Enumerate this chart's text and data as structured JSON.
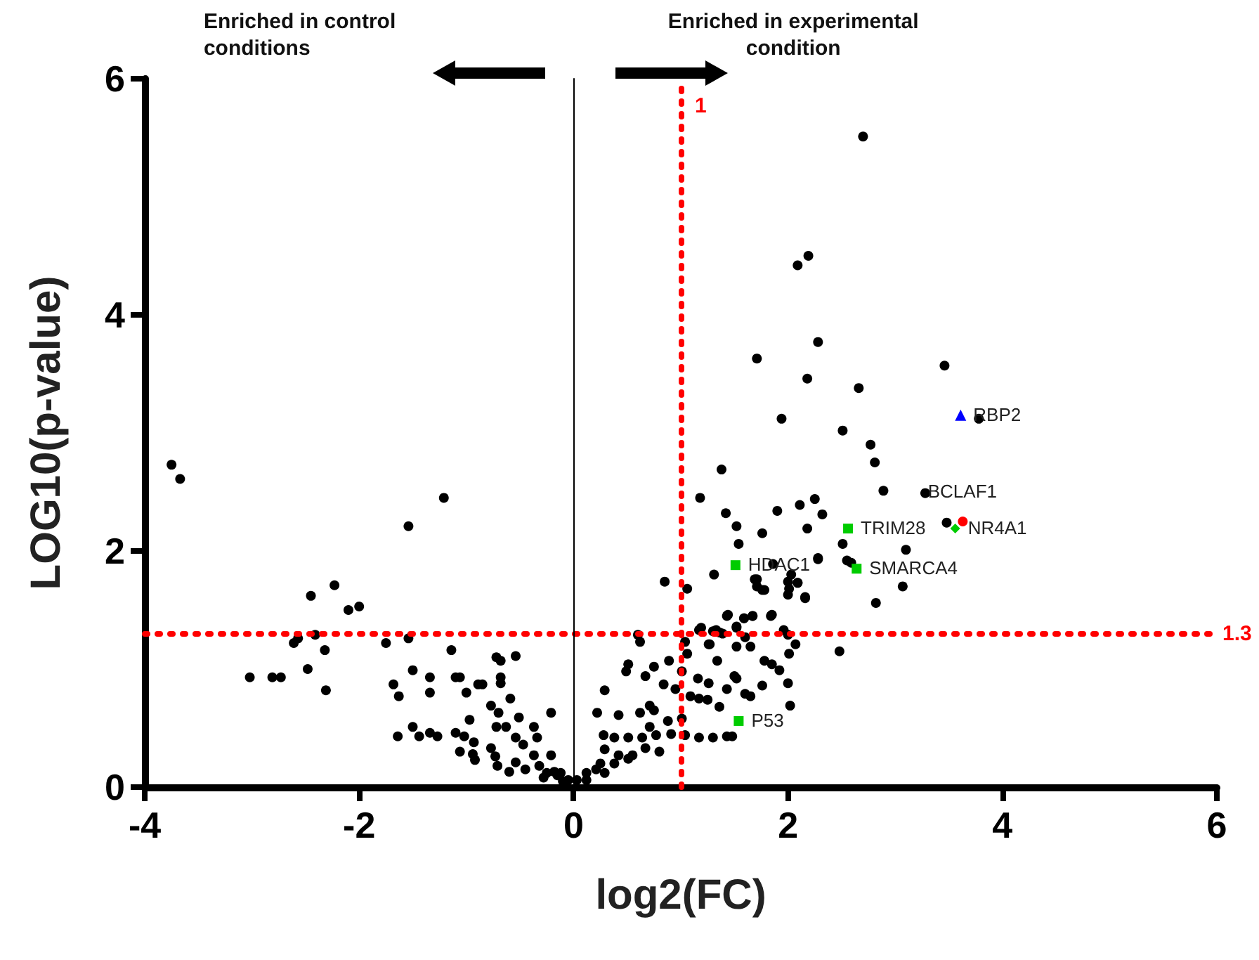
{
  "chart_data": {
    "type": "scatter",
    "xlabel": "log2(FC)",
    "ylabel": "LOG10(p-value)",
    "xlim": [
      -4,
      6
    ],
    "xticks": [
      -4,
      -2,
      0,
      2,
      4,
      6
    ],
    "ylim": [
      0,
      6
    ],
    "yticks": [
      0,
      2,
      4,
      6
    ],
    "grid": false,
    "series": [
      {
        "color": "#000000",
        "marker": "circle",
        "x": [
          -3.75,
          -3.67,
          -1.21,
          -1.54,
          -2.23,
          -2.45,
          -2.1,
          -2.0,
          -2.61,
          -2.57,
          -2.41,
          -2.32,
          -1.75,
          -1.54,
          -3.02,
          -2.81,
          -2.73,
          -2.48,
          -2.31,
          -1.68,
          -1.63,
          -1.5,
          -1.34,
          -1.34,
          -1.14,
          -1.1,
          -1.06,
          -1.0,
          -0.89,
          -0.85,
          -0.72,
          -0.68,
          -0.54,
          -0.68,
          -0.68,
          -0.59,
          -0.77,
          -0.7,
          -0.51,
          -0.97,
          -0.21,
          -1.64,
          -1.5,
          -1.44,
          -1.34,
          -1.27,
          -1.1,
          -1.06,
          -0.94,
          -0.92,
          -1.02,
          -0.93,
          -0.77,
          -0.73,
          -0.71,
          -0.72,
          -0.63,
          -0.54,
          -0.47,
          -0.37,
          -0.34,
          -0.6,
          -0.54,
          -0.45,
          -0.37,
          -0.32,
          -0.21,
          -0.28,
          -0.18,
          -0.12,
          -0.05,
          -0.1,
          -0.15,
          -0.25,
          0.85,
          1.31,
          1.54,
          1.86,
          1.69,
          1.76,
          2.0,
          2.09,
          2.0,
          2.16,
          2.28,
          0.6,
          0.62,
          1.17,
          1.3,
          1.39,
          1.43,
          1.52,
          1.59,
          1.67,
          1.85,
          1.96,
          2.0,
          1.04,
          1.06,
          1.26,
          1.52,
          1.6,
          1.65,
          2.01,
          2.48,
          0.51,
          0.49,
          0.67,
          0.75,
          0.89,
          0.84,
          0.95,
          1.01,
          1.16,
          1.34,
          1.26,
          1.5,
          1.52,
          1.43,
          1.6,
          1.65,
          1.76,
          1.78,
          1.85,
          1.92,
          2.0,
          2.02,
          1.09,
          1.17,
          1.25,
          1.36,
          0.29,
          0.22,
          0.42,
          0.62,
          0.71,
          0.75,
          0.71,
          0.88,
          1.01,
          0.28,
          0.38,
          0.51,
          0.64,
          0.77,
          0.91,
          1.04,
          1.17,
          1.3,
          1.43,
          1.48,
          0.29,
          0.42,
          0.55,
          0.67,
          0.8,
          0.25,
          0.38,
          0.51,
          0.12,
          0.21,
          0.29,
          0.03,
          0.12,
          2.7,
          2.19,
          2.09,
          2.28,
          1.71,
          2.18,
          2.66,
          3.46,
          1.94,
          2.51,
          2.77,
          2.81,
          3.78,
          1.38,
          2.89,
          3.28,
          1.18,
          1.42,
          1.9,
          2.11,
          2.25,
          2.32,
          1.52,
          1.76,
          2.18,
          2.51,
          3.1,
          3.48,
          2.55,
          2.59,
          2.28,
          2.82,
          3.07,
          1.06,
          1.71,
          1.71,
          1.78,
          2.03,
          2.09,
          2.01,
          2.16,
          1.44,
          1.59,
          1.67,
          1.84,
          1.19,
          1.33,
          1.36,
          1.52,
          1.27,
          2.07
        ],
        "values": [
          2.73,
          2.61,
          2.45,
          2.21,
          1.71,
          1.62,
          1.5,
          1.53,
          1.22,
          1.26,
          1.29,
          1.16,
          1.22,
          1.26,
          0.93,
          0.93,
          0.93,
          1.0,
          0.82,
          0.87,
          0.77,
          0.99,
          0.93,
          0.8,
          1.16,
          0.93,
          0.93,
          0.8,
          0.87,
          0.87,
          1.1,
          1.07,
          1.11,
          0.93,
          0.88,
          0.75,
          0.69,
          0.63,
          0.59,
          0.57,
          0.63,
          0.43,
          0.51,
          0.43,
          0.46,
          0.43,
          0.46,
          0.3,
          0.28,
          0.23,
          0.43,
          0.38,
          0.33,
          0.26,
          0.18,
          0.51,
          0.51,
          0.42,
          0.36,
          0.51,
          0.42,
          0.13,
          0.21,
          0.15,
          0.27,
          0.18,
          0.27,
          0.08,
          0.13,
          0.12,
          0.06,
          0.05,
          0.1,
          0.12,
          1.74,
          1.8,
          2.06,
          1.89,
          1.76,
          1.67,
          1.74,
          1.73,
          1.63,
          1.61,
          1.94,
          1.29,
          1.23,
          1.33,
          1.32,
          1.3,
          1.45,
          1.35,
          1.43,
          1.45,
          1.46,
          1.33,
          1.29,
          1.23,
          1.13,
          1.21,
          1.19,
          1.27,
          1.19,
          1.13,
          1.15,
          1.04,
          0.98,
          0.94,
          1.02,
          1.07,
          0.87,
          0.83,
          0.98,
          0.92,
          1.07,
          0.88,
          0.94,
          0.92,
          0.83,
          0.79,
          0.77,
          0.86,
          1.07,
          1.04,
          0.99,
          0.88,
          0.69,
          0.77,
          0.75,
          0.74,
          0.68,
          0.82,
          0.63,
          0.61,
          0.63,
          0.69,
          0.65,
          0.51,
          0.56,
          0.58,
          0.44,
          0.42,
          0.42,
          0.42,
          0.44,
          0.45,
          0.44,
          0.42,
          0.42,
          0.43,
          0.43,
          0.32,
          0.27,
          0.27,
          0.33,
          0.3,
          0.2,
          0.2,
          0.24,
          0.12,
          0.15,
          0.12,
          0.06,
          0.06,
          5.51,
          4.5,
          4.42,
          3.77,
          3.63,
          3.46,
          3.38,
          3.57,
          3.12,
          3.02,
          2.9,
          2.75,
          3.12,
          2.69,
          2.51,
          2.49,
          2.45,
          2.32,
          2.34,
          2.39,
          2.44,
          2.31,
          2.21,
          2.15,
          2.19,
          2.06,
          2.01,
          2.24,
          1.92,
          1.9,
          1.93,
          1.56,
          1.7,
          1.68,
          1.76,
          1.7,
          1.67,
          1.8,
          1.73,
          1.68,
          1.6,
          1.46,
          1.43,
          1.45,
          1.45,
          1.35,
          1.33,
          1.31,
          1.36,
          1.21,
          1.21
        ]
      },
      {
        "color": "#00cc00",
        "marker": "square",
        "x": [
          1.51,
          2.56,
          2.64,
          1.54
        ],
        "values": [
          1.88,
          2.19,
          1.85,
          0.56
        ]
      },
      {
        "color": "#00cc00",
        "marker": "diamond",
        "x": [
          3.56
        ],
        "values": [
          2.19
        ]
      },
      {
        "color": "#ff0000",
        "marker": "circle",
        "x": [
          3.63
        ],
        "values": [
          2.25
        ]
      },
      {
        "color": "#0000ff",
        "marker": "triangle",
        "x": [
          3.61
        ],
        "values": [
          3.15
        ]
      }
    ],
    "ref_lines": [
      {
        "axis": "x",
        "value": 1,
        "label": "1",
        "color": "#ff0000",
        "line_style": "dotted"
      },
      {
        "axis": "y",
        "value": 1.3,
        "label": "1.3",
        "color": "#ff0000",
        "line_style": "dotted"
      },
      {
        "axis": "x",
        "value": 0,
        "label": null,
        "color": "#000000",
        "line_style": "solid"
      }
    ],
    "annotations": [
      "Enriched in control conditions",
      "Enriched in experimental condition",
      {
        "text": "HDAC1",
        "x": 1.51,
        "y": 1.88
      },
      {
        "text": "TRIM28",
        "x": 2.56,
        "y": 2.19
      },
      {
        "text": "SMARCA4",
        "x": 2.64,
        "y": 1.85
      },
      {
        "text": "P53",
        "x": 1.54,
        "y": 0.56
      },
      {
        "text": "NR4A1",
        "x": 3.56,
        "y": 2.19
      },
      {
        "text": "BCLAF1",
        "x": 3.63,
        "y": 2.25
      },
      {
        "text": "RBP2",
        "x": 3.61,
        "y": 3.15
      }
    ]
  }
}
